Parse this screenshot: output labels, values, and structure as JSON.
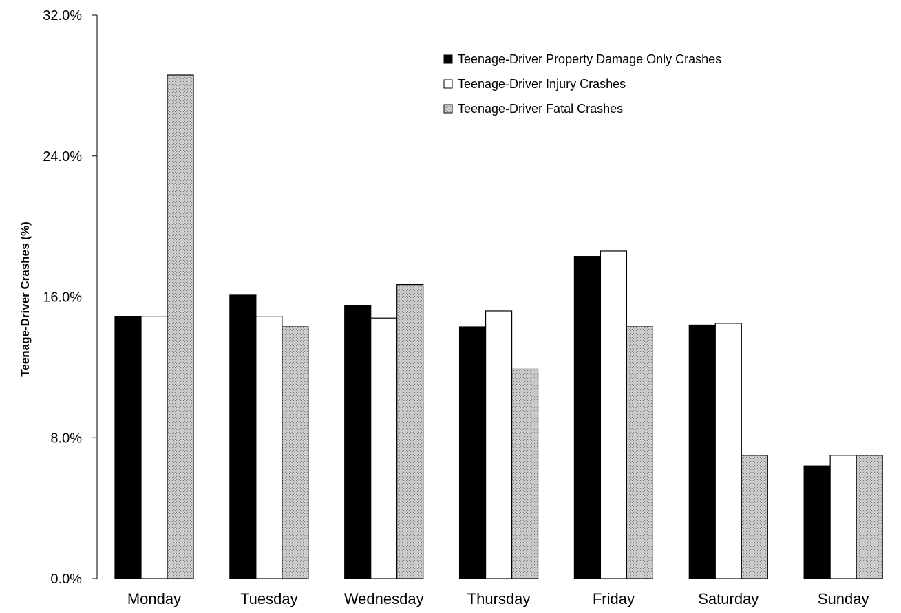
{
  "chart_data": {
    "type": "bar",
    "categories": [
      "Monday",
      "Tuesday",
      "Wednesday",
      "Thursday",
      "Friday",
      "Saturday",
      "Sunday"
    ],
    "series": [
      {
        "name": "Teenage-Driver Property Damage Only Crashes",
        "values": [
          14.9,
          16.1,
          15.5,
          14.3,
          18.3,
          14.4,
          6.4
        ],
        "fill": "#000000"
      },
      {
        "name": "Teenage-Driver Injury Crashes",
        "values": [
          14.9,
          14.9,
          14.8,
          15.2,
          18.6,
          14.5,
          7.0
        ],
        "fill": "#ffffff"
      },
      {
        "name": "Teenage-Driver Fatal Crashes",
        "values": [
          28.6,
          14.3,
          16.7,
          11.9,
          14.3,
          7.0,
          7.0
        ],
        "fill": "pattern"
      }
    ],
    "ylabel": "Teenage-Driver Crashes (%)",
    "ylim": [
      0,
      32
    ],
    "yticks": [
      "0.0%",
      "8.0%",
      "16.0%",
      "24.0%",
      "32.0%"
    ],
    "ytick_values": [
      0,
      8,
      16,
      24,
      32
    ],
    "legend": "top-right",
    "grid": false
  }
}
